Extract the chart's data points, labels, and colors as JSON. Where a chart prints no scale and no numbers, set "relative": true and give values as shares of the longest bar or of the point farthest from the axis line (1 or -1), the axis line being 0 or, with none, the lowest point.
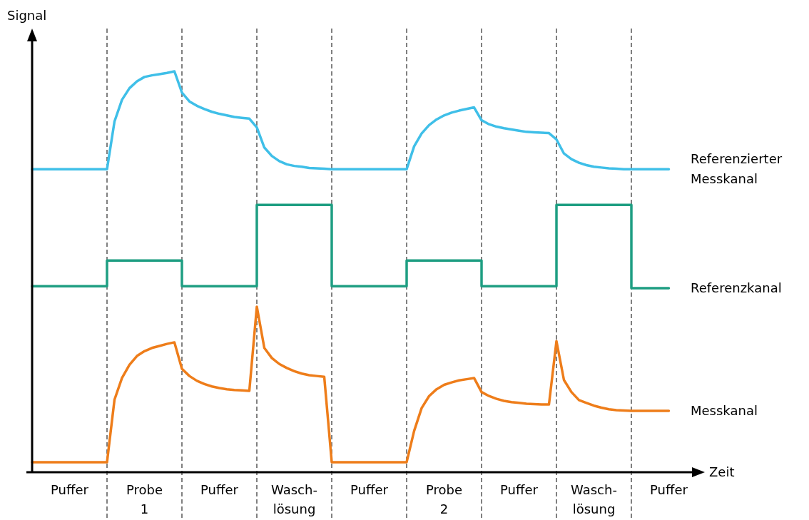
{
  "chart_data": {
    "type": "line",
    "relative": true,
    "xlabel": "Zeit",
    "ylabel": "Signal",
    "tick_labels": "x",
    "marker": "none",
    "line_style": "solid",
    "categories": [
      null,
      null,
      null,
      null,
      null,
      "Puffer",
      null,
      null,
      null,
      null,
      null,
      null,
      null,
      null,
      null,
      "Probe\n1",
      null,
      null,
      null,
      null,
      null,
      null,
      null,
      null,
      null,
      "Puffer",
      null,
      null,
      null,
      null,
      null,
      null,
      null,
      null,
      null,
      "Wasch-\nlösung",
      null,
      null,
      null,
      null,
      null,
      null,
      null,
      null,
      null,
      "Puffer",
      null,
      null,
      null,
      null,
      null,
      null,
      null,
      null,
      null,
      "Probe\n2",
      null,
      null,
      null,
      null,
      null,
      null,
      null,
      null,
      null,
      "Puffer",
      null,
      null,
      null,
      null,
      null,
      null,
      null,
      null,
      null,
      "Wasch-\nlösung",
      null,
      null,
      null,
      null,
      null,
      null,
      null,
      null,
      null,
      "Puffer",
      null,
      null,
      null,
      null,
      null
    ],
    "series": [
      {
        "name": "Referenzierter Messkanal",
        "color": "#3fbfe8",
        "values": [
          0.756,
          0.756,
          0.756,
          0.756,
          0.756,
          0.756,
          0.756,
          0.756,
          0.756,
          0.756,
          0.756,
          0.875,
          0.929,
          0.958,
          0.975,
          0.986,
          0.99,
          0.993,
          0.996,
          1,
          0.947,
          0.925,
          0.914,
          0.906,
          0.899,
          0.894,
          0.89,
          0.886,
          0.884,
          0.882,
          0.86,
          0.81,
          0.789,
          0.776,
          0.768,
          0.764,
          0.762,
          0.759,
          0.758,
          0.757,
          0.756,
          0.756,
          0.756,
          0.756,
          0.756,
          0.756,
          0.756,
          0.756,
          0.756,
          0.756,
          0.756,
          0.813,
          0.845,
          0.866,
          0.88,
          0.89,
          0.897,
          0.902,
          0.906,
          0.91,
          0.878,
          0.868,
          0.862,
          0.858,
          0.855,
          0.852,
          0.849,
          0.848,
          0.847,
          0.846,
          0.83,
          0.795,
          0.781,
          0.772,
          0.766,
          0.762,
          0.76,
          0.758,
          0.757,
          0.756,
          0.756,
          0.756,
          0.756,
          0.756,
          0.756,
          0.756,
          null,
          null,
          null,
          null,
          null
        ]
      },
      {
        "name": "Referenzkanal",
        "color": "#1e9e82",
        "type": "step",
        "values": [
          0.464,
          0.464,
          0.464,
          0.464,
          0.464,
          0.464,
          0.464,
          0.464,
          0.464,
          0.464,
          0.528,
          0.528,
          0.528,
          0.528,
          0.528,
          0.528,
          0.528,
          0.528,
          0.528,
          0.528,
          0.464,
          0.464,
          0.464,
          0.464,
          0.464,
          0.464,
          0.464,
          0.464,
          0.464,
          0.464,
          0.667,
          0.667,
          0.667,
          0.667,
          0.667,
          0.667,
          0.667,
          0.667,
          0.667,
          0.667,
          0.464,
          0.464,
          0.464,
          0.464,
          0.464,
          0.464,
          0.464,
          0.464,
          0.464,
          0.464,
          0.528,
          0.528,
          0.528,
          0.528,
          0.528,
          0.528,
          0.528,
          0.528,
          0.528,
          0.528,
          0.464,
          0.464,
          0.464,
          0.464,
          0.464,
          0.464,
          0.464,
          0.464,
          0.464,
          0.464,
          0.667,
          0.667,
          0.667,
          0.667,
          0.667,
          0.667,
          0.667,
          0.667,
          0.667,
          0.667,
          0.459,
          0.459,
          0.459,
          0.459,
          0.459,
          0.459,
          null,
          null,
          null,
          null,
          null
        ]
      },
      {
        "name": "Messkanal",
        "color": "#ee7d1a",
        "values": [
          0.025,
          0.025,
          0.025,
          0.025,
          0.025,
          0.025,
          0.025,
          0.025,
          0.025,
          0.025,
          0.025,
          0.181,
          0.235,
          0.268,
          0.29,
          0.302,
          0.31,
          0.315,
          0.32,
          0.324,
          0.258,
          0.24,
          0.228,
          0.22,
          0.214,
          0.21,
          0.207,
          0.205,
          0.204,
          0.203,
          0.413,
          0.31,
          0.285,
          0.27,
          0.26,
          0.252,
          0.246,
          0.242,
          0.24,
          0.238,
          0.025,
          0.025,
          0.025,
          0.025,
          0.025,
          0.025,
          0.025,
          0.025,
          0.025,
          0.025,
          0.025,
          0.103,
          0.16,
          0.19,
          0.207,
          0.218,
          0.224,
          0.229,
          0.232,
          0.235,
          0.2,
          0.19,
          0.183,
          0.178,
          0.175,
          0.173,
          0.171,
          0.17,
          0.169,
          0.169,
          0.327,
          0.23,
          0.2,
          0.18,
          0.173,
          0.166,
          0.161,
          0.157,
          0.155,
          0.154,
          0.153,
          0.153,
          0.153,
          0.153,
          0.153,
          0.153,
          null,
          null,
          null,
          null,
          null
        ]
      }
    ]
  }
}
